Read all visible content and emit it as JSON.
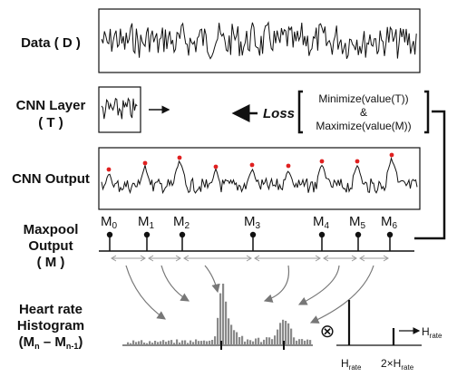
{
  "labels": {
    "data": "Data ( D )",
    "cnn_layer_1": "CNN Layer",
    "cnn_layer_2": "( T )",
    "cnn_output": "CNN Output",
    "maxpool_1": "Maxpool",
    "maxpool_2": "Output",
    "maxpool_3": "( M )",
    "histogram_1": "Heart rate",
    "histogram_2": "Histogram",
    "histogram_3": "(M",
    "histogram_sub_n": "n",
    "histogram_minus": " – M",
    "histogram_sub_n1": "n-1",
    "histogram_close": ")"
  },
  "loss": {
    "label": "Loss",
    "minimize": "Minimize(value(T))",
    "and": "&",
    "maximize": "Maximize(value(M))"
  },
  "maxpool": {
    "markers": [
      {
        "base": "M",
        "sub": "0"
      },
      {
        "base": "M",
        "sub": "1"
      },
      {
        "base": "M",
        "sub": "2"
      },
      {
        "base": "M",
        "sub": "3"
      },
      {
        "base": "M",
        "sub": "4"
      },
      {
        "base": "M",
        "sub": "5"
      },
      {
        "base": "M",
        "sub": "6"
      }
    ]
  },
  "conv_symbol": "⊗",
  "hrate": {
    "arrow_label": "H",
    "arrow_sub": "rate",
    "first_label": "H",
    "first_sub": "rate",
    "second_prefix": "2×H",
    "second_sub": "rate"
  },
  "colors": {
    "line": "#111111",
    "peak": "#e02020",
    "hist_bar": "#8a8a8a",
    "arrow": "#777777"
  }
}
